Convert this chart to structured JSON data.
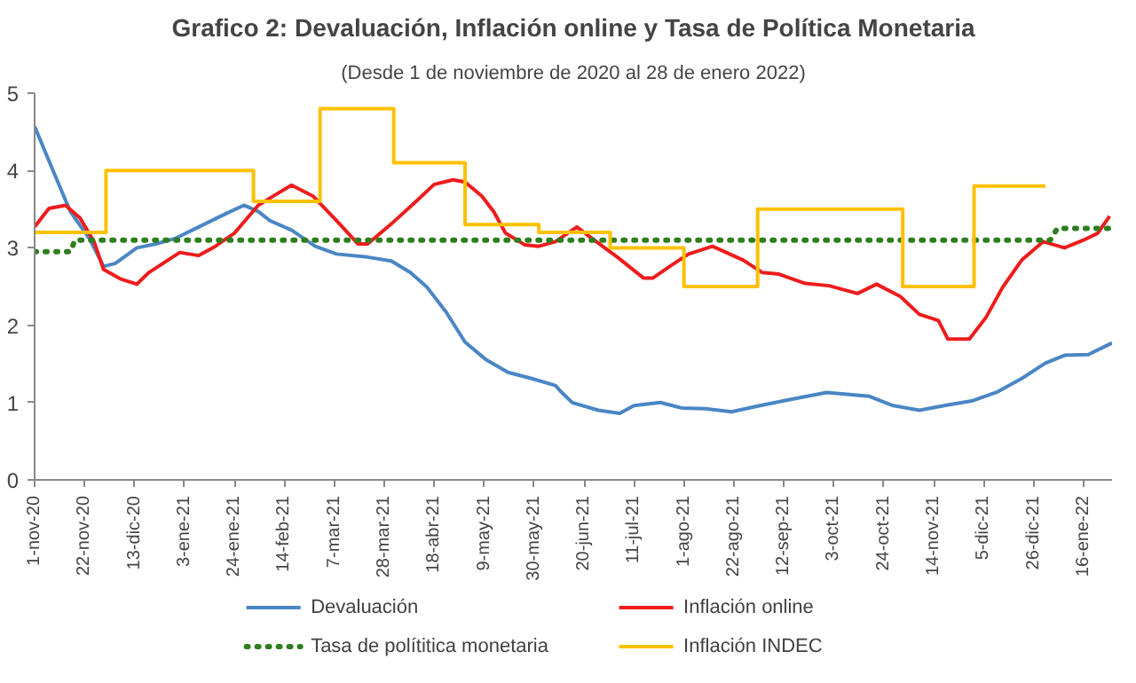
{
  "chart_data": {
    "type": "line",
    "title": "Grafico 2: Devaluación, Inflación online y Tasa de Política Monetaria",
    "subtitle": "(Desde 1 de noviembre de 2020 al 28 de enero 2022)",
    "xlim": [
      "2020-11-01",
      "2022-01-28"
    ],
    "ylim": [
      0,
      5
    ],
    "yticks": [
      0,
      1,
      2,
      3,
      4,
      5
    ],
    "xticks": [
      {
        "value": "2020-11-01",
        "label": "1-nov-20"
      },
      {
        "value": "2020-11-22",
        "label": "22-nov-20"
      },
      {
        "value": "2020-12-13",
        "label": "13-dic-20"
      },
      {
        "value": "2021-01-03",
        "label": "3-ene-21"
      },
      {
        "value": "2021-01-24",
        "label": "24-ene-21"
      },
      {
        "value": "2021-02-14",
        "label": "14-feb-21"
      },
      {
        "value": "2021-03-07",
        "label": "7-mar-21"
      },
      {
        "value": "2021-03-28",
        "label": "28-mar-21"
      },
      {
        "value": "2021-04-18",
        "label": "18-abr-21"
      },
      {
        "value": "2021-05-09",
        "label": "9-may-21"
      },
      {
        "value": "2021-05-30",
        "label": "30-may-21"
      },
      {
        "value": "2021-06-20",
        "label": "20-jun-21"
      },
      {
        "value": "2021-07-11",
        "label": "11-jul-21"
      },
      {
        "value": "2021-08-01",
        "label": "1-ago-21"
      },
      {
        "value": "2021-08-22",
        "label": "22-ago-21"
      },
      {
        "value": "2021-09-12",
        "label": "12-sep-21"
      },
      {
        "value": "2021-10-03",
        "label": "3-oct-21"
      },
      {
        "value": "2021-10-24",
        "label": "24-oct-21"
      },
      {
        "value": "2021-11-14",
        "label": "14-nov-21"
      },
      {
        "value": "2021-12-05",
        "label": "5-dic-21"
      },
      {
        "value": "2021-12-26",
        "label": "26-dic-21"
      },
      {
        "value": "2022-01-16",
        "label": "16-ene-22"
      }
    ],
    "grid": false,
    "legend": "bottom",
    "series": [
      {
        "name": "Devaluación",
        "color": "#4a86c5",
        "x": [
          "2020-11-01",
          "2020-11-09",
          "2020-11-16",
          "2020-11-24",
          "2020-11-30",
          "2020-12-05",
          "2020-12-14",
          "2020-12-22",
          "2020-12-30",
          "2021-01-09",
          "2021-01-21",
          "2021-01-28",
          "2021-02-03",
          "2021-02-08",
          "2021-02-17",
          "2021-02-27",
          "2021-03-08",
          "2021-03-21",
          "2021-03-31",
          "2021-04-08",
          "2021-04-15",
          "2021-04-23",
          "2021-05-01",
          "2021-05-10",
          "2021-05-19",
          "2021-05-29",
          "2021-06-08",
          "2021-06-10",
          "2021-06-15",
          "2021-06-26",
          "2021-07-05",
          "2021-07-11",
          "2021-07-22",
          "2021-07-31",
          "2021-08-10",
          "2021-08-21",
          "2021-09-02",
          "2021-09-15",
          "2021-09-30",
          "2021-10-18",
          "2021-10-28",
          "2021-11-08",
          "2021-11-20",
          "2021-11-30",
          "2021-12-11",
          "2021-12-21",
          "2021-12-31",
          "2022-01-08",
          "2022-01-18",
          "2022-01-28"
        ],
        "values": [
          4.57,
          3.98,
          3.47,
          3.12,
          2.76,
          2.8,
          3.0,
          3.05,
          3.12,
          3.27,
          3.45,
          3.55,
          3.47,
          3.35,
          3.23,
          3.02,
          2.92,
          2.88,
          2.83,
          2.68,
          2.49,
          2.17,
          1.78,
          1.55,
          1.39,
          1.31,
          1.22,
          1.15,
          1.0,
          0.9,
          0.86,
          0.96,
          1.0,
          0.93,
          0.92,
          0.88,
          0.96,
          1.04,
          1.13,
          1.08,
          0.96,
          0.9,
          0.97,
          1.02,
          1.14,
          1.31,
          1.51,
          1.61,
          1.62,
          1.77
        ]
      },
      {
        "name": "Inflación online",
        "color": "#ee1c1c",
        "x": [
          "2020-11-01",
          "2020-11-07",
          "2020-11-14",
          "2020-11-20",
          "2020-11-26",
          "2020-11-30",
          "2020-12-07",
          "2020-12-14",
          "2020-12-19",
          "2020-12-27",
          "2021-01-01",
          "2021-01-09",
          "2021-01-16",
          "2021-01-24",
          "2021-02-03",
          "2021-02-11",
          "2021-02-17",
          "2021-02-26",
          "2021-03-08",
          "2021-03-17",
          "2021-03-21",
          "2021-03-31",
          "2021-04-10",
          "2021-04-18",
          "2021-04-26",
          "2021-05-01",
          "2021-05-08",
          "2021-05-13",
          "2021-05-18",
          "2021-05-26",
          "2021-06-01",
          "2021-06-08",
          "2021-06-17",
          "2021-06-23",
          "2021-07-04",
          "2021-07-15",
          "2021-07-19",
          "2021-07-26",
          "2021-08-03",
          "2021-08-13",
          "2021-08-26",
          "2021-09-03",
          "2021-09-10",
          "2021-09-21",
          "2021-10-01",
          "2021-10-13",
          "2021-10-21",
          "2021-10-31",
          "2021-11-08",
          "2021-11-16",
          "2021-11-20",
          "2021-11-29",
          "2021-12-06",
          "2021-12-13",
          "2021-12-21",
          "2021-12-30",
          "2022-01-08",
          "2022-01-16",
          "2022-01-22",
          "2022-01-27"
        ],
        "values": [
          3.27,
          3.51,
          3.55,
          3.39,
          3.08,
          2.72,
          2.6,
          2.53,
          2.68,
          2.84,
          2.94,
          2.9,
          3.02,
          3.19,
          3.55,
          3.7,
          3.81,
          3.67,
          3.35,
          3.05,
          3.05,
          3.31,
          3.59,
          3.82,
          3.88,
          3.85,
          3.67,
          3.47,
          3.19,
          3.04,
          3.02,
          3.08,
          3.27,
          3.13,
          2.88,
          2.61,
          2.61,
          2.76,
          2.92,
          3.02,
          2.84,
          2.68,
          2.66,
          2.54,
          2.51,
          2.41,
          2.53,
          2.37,
          2.14,
          2.06,
          1.82,
          1.82,
          2.1,
          2.49,
          2.84,
          3.08,
          3.0,
          3.1,
          3.19,
          3.41
        ]
      },
      {
        "name": "Tasa de polítitica monetaria",
        "color": "#2e7d1e",
        "line_style": "dotted",
        "x": [
          "2020-11-01",
          "2020-11-16",
          "2020-11-18",
          "2022-01-02",
          "2022-01-05",
          "2022-01-28"
        ],
        "values": [
          2.95,
          2.95,
          3.1,
          3.1,
          3.25,
          3.25
        ]
      },
      {
        "name": "Inflación INDEC",
        "color": "#ffc000",
        "type": "step",
        "x": [
          "2020-11-01",
          "2020-12-01",
          "2021-02-01",
          "2021-03-01",
          "2021-04-01",
          "2021-05-01",
          "2021-06-01",
          "2021-07-01",
          "2021-08-01",
          "2021-09-01",
          "2021-11-01",
          "2021-12-01",
          "2021-12-31"
        ],
        "values": [
          3.2,
          4.0,
          3.6,
          4.8,
          4.1,
          3.3,
          3.2,
          3.0,
          2.5,
          3.5,
          2.5,
          3.8,
          3.8
        ]
      }
    ]
  }
}
